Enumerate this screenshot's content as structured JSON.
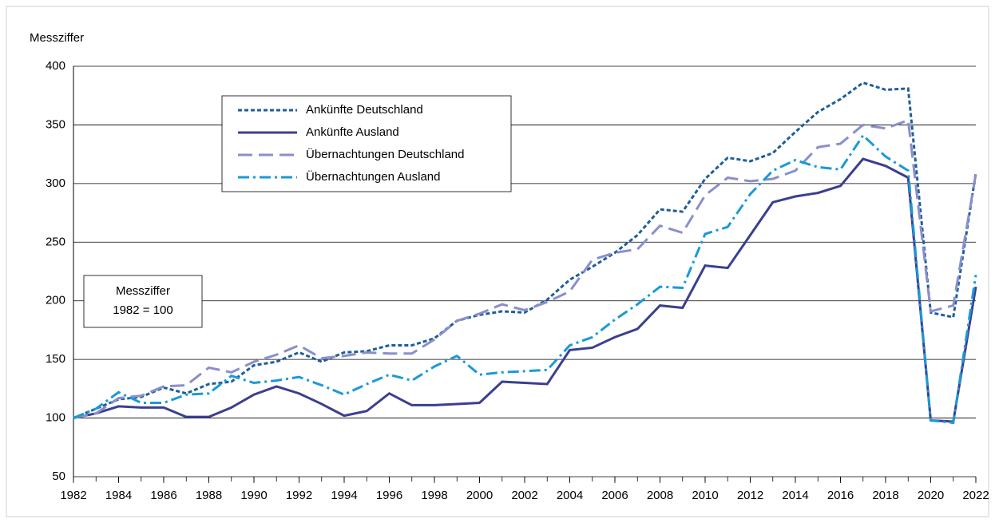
{
  "chart_data": {
    "type": "line",
    "y_label": "Messziffer",
    "annotation": [
      "Messziffer",
      "1982 = 100"
    ],
    "x": [
      1982,
      1983,
      1984,
      1985,
      1986,
      1987,
      1988,
      1989,
      1990,
      1991,
      1992,
      1993,
      1994,
      1995,
      1996,
      1997,
      1998,
      1999,
      2000,
      2001,
      2002,
      2003,
      2004,
      2005,
      2006,
      2007,
      2008,
      2009,
      2010,
      2011,
      2012,
      2013,
      2014,
      2015,
      2016,
      2017,
      2018,
      2019,
      2020,
      2021,
      2022
    ],
    "xlim": [
      1982,
      2022
    ],
    "xticks": [
      1982,
      1984,
      1986,
      1988,
      1990,
      1992,
      1994,
      1996,
      1998,
      2000,
      2002,
      2004,
      2006,
      2008,
      2010,
      2012,
      2014,
      2016,
      2018,
      2020,
      2022
    ],
    "ylim": [
      50,
      400
    ],
    "yticks": [
      50,
      100,
      150,
      200,
      250,
      300,
      350,
      400
    ],
    "grid": true,
    "series": [
      {
        "name": "Ankünfte Deutschland",
        "color": "#1f5e98",
        "style": "dashed",
        "values": [
          100,
          108,
          116,
          118,
          126,
          121,
          129,
          131,
          145,
          148,
          156,
          148,
          156,
          157,
          162,
          162,
          168,
          183,
          188,
          191,
          190,
          201,
          218,
          229,
          241,
          256,
          278,
          276,
          304,
          322,
          319,
          326,
          344,
          361,
          372,
          386,
          380,
          381,
          190,
          186,
          309
        ]
      },
      {
        "name": "Ankünfte Ausland",
        "color": "#3b3f8f",
        "style": "solid",
        "values": [
          100,
          104,
          110,
          109,
          109,
          101,
          101,
          109,
          120,
          127,
          121,
          112,
          102,
          106,
          121,
          111,
          111,
          112,
          113,
          131,
          130,
          129,
          158,
          160,
          169,
          176,
          196,
          194,
          230,
          228,
          256,
          284,
          289,
          292,
          298,
          321,
          315,
          305,
          98,
          97,
          212
        ]
      },
      {
        "name": "Übernachtungen Deutschland",
        "color": "#8a8fcc",
        "style": "longdash",
        "values": [
          100,
          104,
          117,
          119,
          127,
          128,
          143,
          139,
          148,
          154,
          162,
          151,
          153,
          156,
          155,
          155,
          167,
          183,
          189,
          197,
          192,
          199,
          208,
          235,
          241,
          244,
          264,
          258,
          290,
          305,
          302,
          304,
          311,
          331,
          334,
          350,
          347,
          354,
          191,
          196,
          308
        ]
      },
      {
        "name": "Übernachtungen Ausland",
        "color": "#1a9ad6",
        "style": "dashdot",
        "values": [
          100,
          108,
          122,
          113,
          113,
          120,
          121,
          136,
          130,
          132,
          135,
          128,
          120,
          129,
          137,
          132,
          144,
          153,
          137,
          139,
          140,
          141,
          162,
          169,
          184,
          197,
          212,
          211,
          257,
          263,
          291,
          311,
          320,
          314,
          312,
          341,
          323,
          311,
          98,
          96,
          222
        ]
      }
    ]
  }
}
